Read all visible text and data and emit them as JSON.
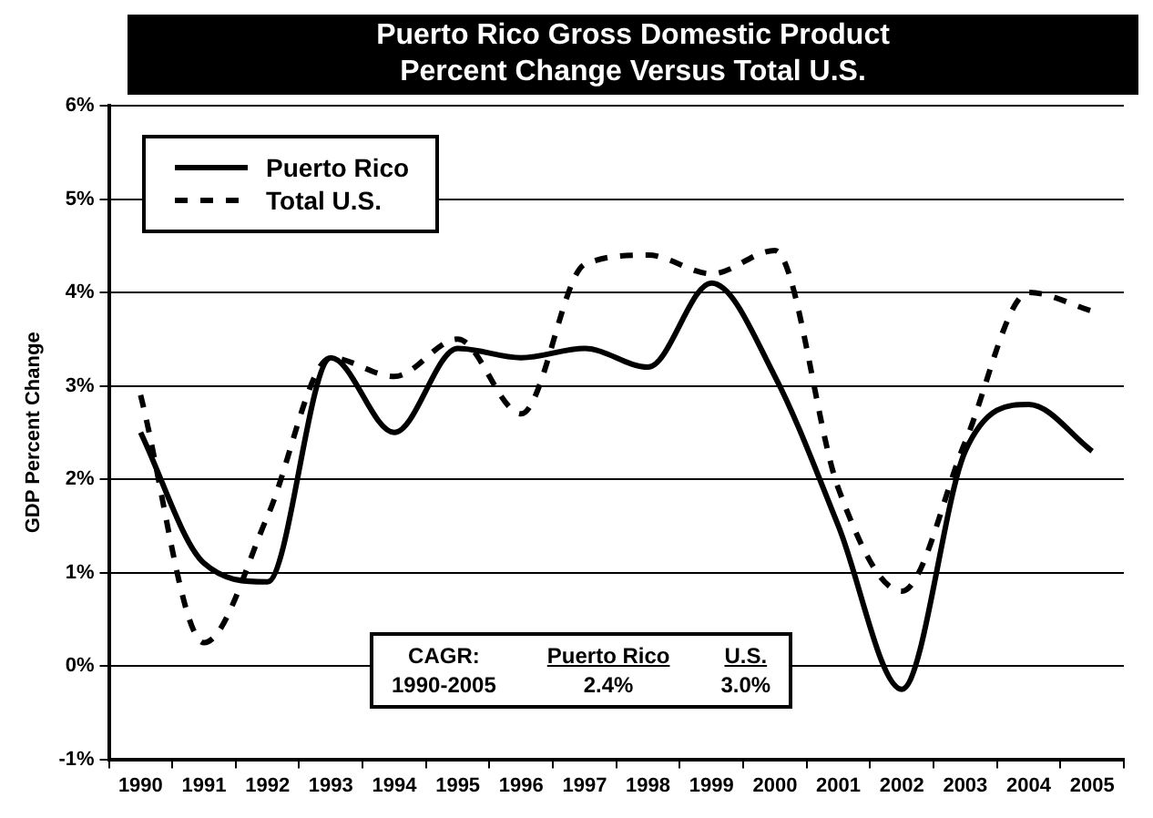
{
  "chart_data": {
    "type": "line",
    "title": "Puerto Rico Gross Domestic Product\nPercent Change Versus Total U.S.",
    "ylabel": "GDP Percent Change",
    "categories": [
      "1990",
      "1991",
      "1992",
      "1993",
      "1994",
      "1995",
      "1996",
      "1997",
      "1998",
      "1999",
      "2000",
      "2001",
      "2002",
      "2003",
      "2004",
      "2005"
    ],
    "series": [
      {
        "name": "Puerto Rico",
        "color": "#000000",
        "line_style": "solid",
        "values": [
          2.5,
          1.1,
          0.9,
          3.3,
          2.5,
          3.4,
          3.3,
          3.4,
          3.2,
          4.1,
          3.1,
          1.5,
          -0.25,
          2.3,
          2.8,
          2.3
        ]
      },
      {
        "name": "Total U.S.",
        "color": "#000000",
        "line_style": "dashed",
        "values": [
          2.9,
          0.25,
          1.6,
          3.3,
          3.1,
          3.5,
          2.7,
          4.3,
          4.4,
          4.2,
          4.45,
          1.9,
          0.8,
          2.4,
          4.0,
          3.8
        ]
      }
    ],
    "ylim": [
      -1,
      6
    ],
    "yticks": [
      {
        "value": -1,
        "label": "-1%"
      },
      {
        "value": 0,
        "label": "0%"
      },
      {
        "value": 1,
        "label": "1%"
      },
      {
        "value": 2,
        "label": "2%"
      },
      {
        "value": 3,
        "label": "3%"
      },
      {
        "value": 4,
        "label": "4%"
      },
      {
        "value": 5,
        "label": "5%"
      },
      {
        "value": 6,
        "label": "6%"
      }
    ],
    "grid": "y",
    "legend": "top left",
    "marker": "none",
    "annotations": [
      "CAGR:",
      "1990-2005",
      "Puerto Rico",
      "U.S.",
      "2.4%",
      "3.0%"
    ]
  }
}
